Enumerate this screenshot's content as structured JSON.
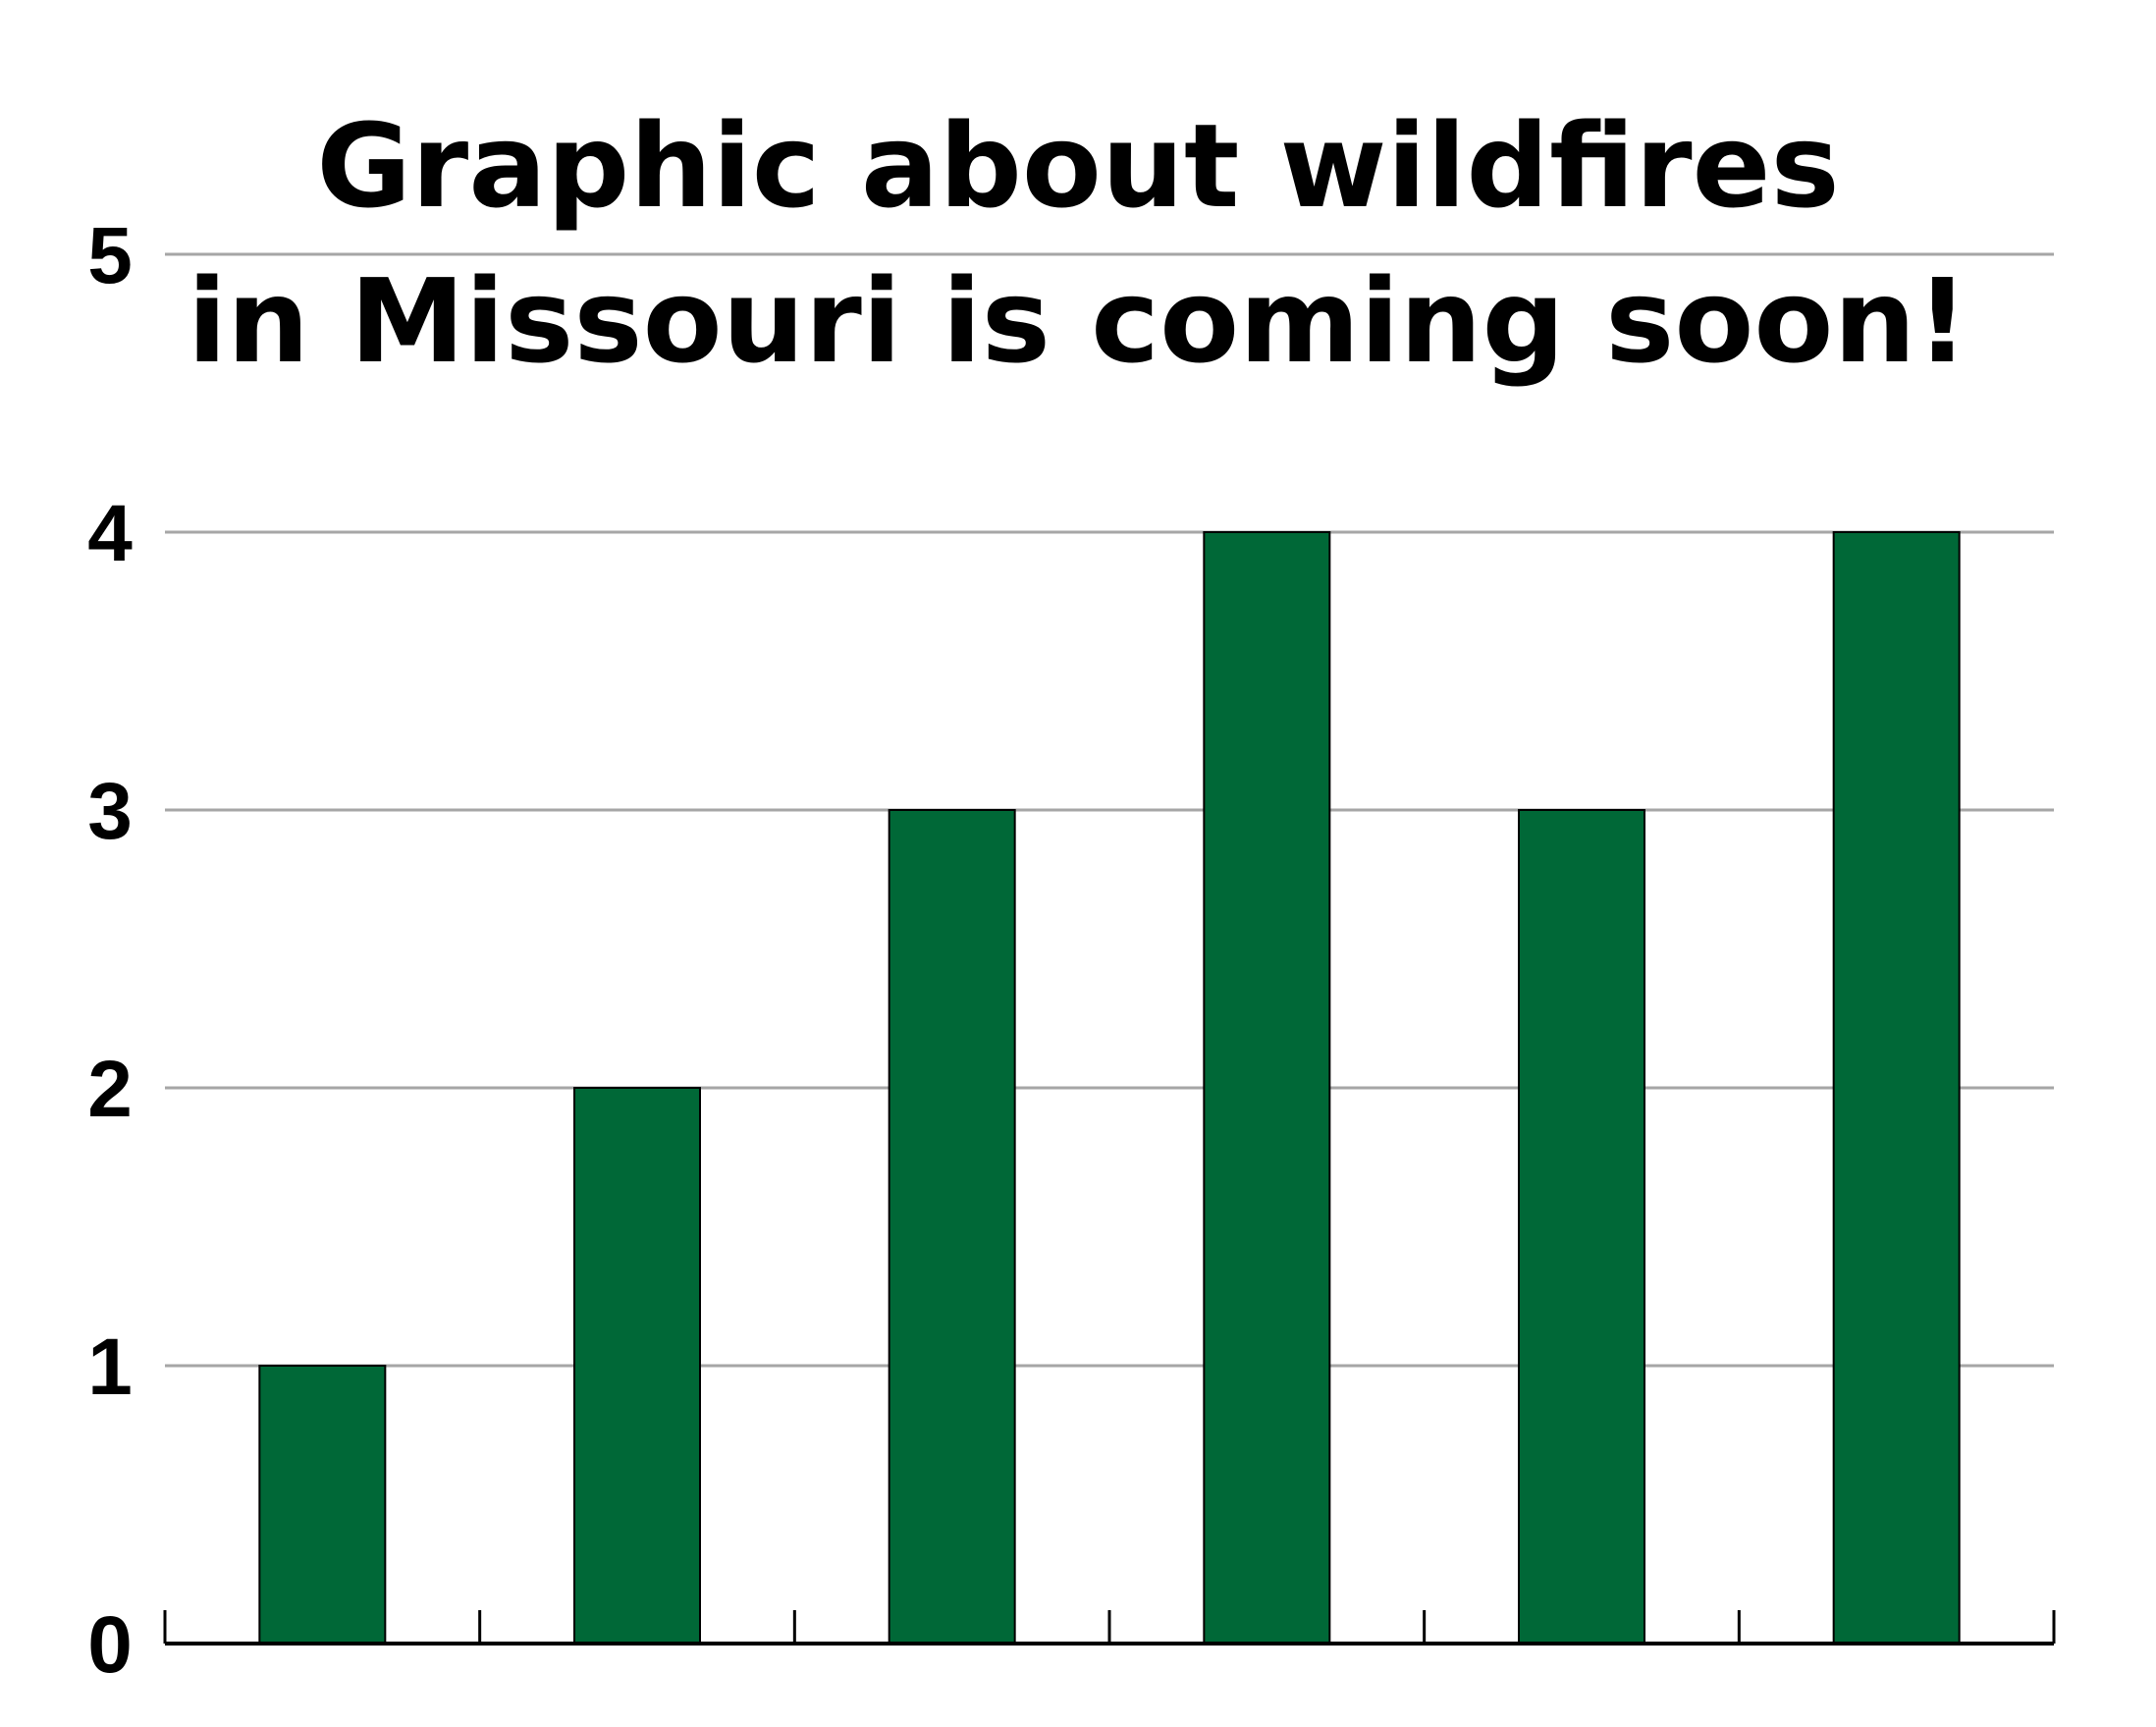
{
  "chart_data": {
    "type": "bar",
    "title": "Graphic about wildfires in Missouri is coming soon!",
    "title_lines": [
      "Graphic about wildfires",
      "in Missouri is coming soon!"
    ],
    "categories": [
      "",
      "",
      "",
      "",
      "",
      ""
    ],
    "values": [
      1,
      2,
      3,
      4,
      3,
      4
    ],
    "xlabel": "",
    "ylabel": "",
    "ylim": [
      0,
      5
    ],
    "yticks": [
      "0",
      "1",
      "2",
      "3",
      "4",
      "5"
    ],
    "grid": true,
    "legend": "none"
  },
  "colors": {
    "bar": "#006837",
    "grid": "#a6a6a6",
    "axis": "#000000",
    "text": "#000000",
    "background": "#ffffff"
  }
}
